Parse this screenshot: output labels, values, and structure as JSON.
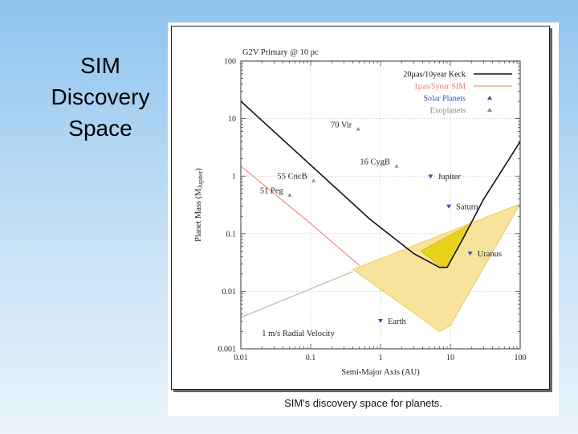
{
  "slide": {
    "title_lines": [
      "SIM",
      "Discovery",
      "Space"
    ]
  },
  "figure": {
    "caption": "SIM's discovery space for planets."
  },
  "chart_data": {
    "type": "line",
    "title": "G2V Primary @ 10 pc",
    "xlabel": "Semi-Major Axis (AU)",
    "ylabel_main": "Planet Mass (M",
    "ylabel_sub": "Jupiter",
    "ylabel_end": ")",
    "x_scale": "log",
    "y_scale": "log",
    "xlim": [
      0.01,
      100
    ],
    "ylim": [
      0.001,
      100
    ],
    "x_ticks": [
      {
        "value": 0.01,
        "label": "0.01"
      },
      {
        "value": 0.1,
        "label": "0.1"
      },
      {
        "value": 1,
        "label": "1"
      },
      {
        "value": 10,
        "label": "10"
      },
      {
        "value": 100,
        "label": "100"
      }
    ],
    "y_ticks": [
      {
        "value": 0.001,
        "label": "0.001"
      },
      {
        "value": 0.01,
        "label": "0.01"
      },
      {
        "value": 0.1,
        "label": "0.1"
      },
      {
        "value": 1,
        "label": "1"
      },
      {
        "value": 10,
        "label": "10"
      },
      {
        "value": 100,
        "label": "100"
      }
    ],
    "grid": true,
    "legend": {
      "position": "top-right",
      "entries": [
        {
          "label": "20µas/10year Keck",
          "color": "#111111",
          "type": "line"
        },
        {
          "label": "1µas/5year SIM",
          "color": "#e87a6a",
          "type": "line"
        },
        {
          "label": "Solar Planets",
          "color": "#3a4fb0",
          "type": "marker"
        },
        {
          "label": "Exoplanets",
          "color": "#8a8a8a",
          "type": "marker"
        }
      ]
    },
    "series": [
      {
        "name": "20µas/10year Keck",
        "color": "#111111",
        "points": [
          [
            0.01,
            20
          ],
          [
            0.7,
            0.18
          ],
          [
            3,
            0.045
          ],
          [
            7,
            0.026
          ],
          [
            9,
            0.026
          ],
          [
            15,
            0.08
          ],
          [
            30,
            0.4
          ],
          [
            60,
            1.5
          ],
          [
            100,
            4
          ]
        ]
      },
      {
        "name": "1µas/5year SIM",
        "color": "#e87a6a",
        "points": [
          [
            0.01,
            1.5
          ],
          [
            0.1,
            0.15
          ],
          [
            0.5,
            0.028
          ]
        ]
      },
      {
        "name": "1 m/s Radial Velocity",
        "color": "#9dbf8a",
        "points": [
          [
            0.01,
            0.0035
          ],
          [
            0.1,
            0.011
          ],
          [
            0.4,
            0.022
          ]
        ]
      }
    ],
    "regions": [
      {
        "name": "SIM-zone",
        "color": "#f7e39a",
        "stroke": "#e3c45a",
        "points": [
          [
            0.4,
            0.024
          ],
          [
            100,
            0.33
          ],
          [
            10,
            0.0025
          ],
          [
            7,
            0.002
          ],
          [
            0.4,
            0.024
          ]
        ]
      },
      {
        "name": "SIM-beyond-Keck",
        "color": "#e8d21a",
        "stroke": "#c9b210",
        "points": [
          [
            3.8,
            0.05
          ],
          [
            7,
            0.028
          ],
          [
            9,
            0.026
          ],
          [
            20,
            0.15
          ],
          [
            3.8,
            0.05
          ]
        ]
      }
    ],
    "solar_planets": [
      {
        "name": "Earth",
        "x": 1,
        "y": 0.0031,
        "label_anchor": "right"
      },
      {
        "name": "Jupiter",
        "x": 5.2,
        "y": 1,
        "label_anchor": "right"
      },
      {
        "name": "Saturn",
        "x": 9.5,
        "y": 0.3,
        "label_anchor": "right"
      },
      {
        "name": "Uranus",
        "x": 19.2,
        "y": 0.046,
        "label_anchor": "right"
      }
    ],
    "exoplanets": [
      {
        "name": "70 Vir",
        "x": 0.48,
        "y": 6.6,
        "label_anchor": "left"
      },
      {
        "name": "16 CygB",
        "x": 1.7,
        "y": 1.5,
        "label_anchor": "left"
      },
      {
        "name": "55 CncB",
        "x": 0.11,
        "y": 0.84,
        "label_anchor": "left"
      },
      {
        "name": "51 Peg",
        "x": 0.05,
        "y": 0.47,
        "label_anchor": "left"
      }
    ],
    "annotations": [
      {
        "text": "1 m/s Radial Velocity",
        "x": 0.02,
        "y": 0.0019
      }
    ]
  }
}
